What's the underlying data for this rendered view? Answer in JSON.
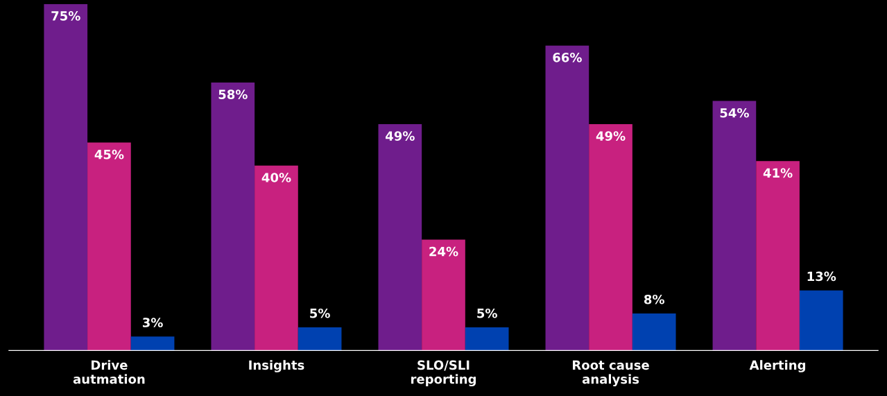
{
  "chart_data": {
    "type": "bar",
    "categories": [
      "Drive\nautmation",
      "Insights",
      "SLO/SLI\nreporting",
      "Root cause\nanalysis",
      "Alerting"
    ],
    "series": [
      {
        "color": "#6f1d8c",
        "values": [
          75,
          58,
          49,
          66,
          54
        ],
        "value_labels": [
          "75%",
          "58%",
          "49%",
          "66%",
          "54%"
        ]
      },
      {
        "color": "#c8217f",
        "values": [
          45,
          40,
          24,
          49,
          41
        ],
        "value_labels": [
          "45%",
          "40%",
          "24%",
          "49%",
          "41%"
        ]
      },
      {
        "color": "#0041b0",
        "values": [
          3,
          5,
          5,
          8,
          13
        ],
        "value_labels": [
          "3%",
          "5%",
          "5%",
          "8%",
          "13%"
        ]
      }
    ],
    "legend": false,
    "grid": false
  }
}
